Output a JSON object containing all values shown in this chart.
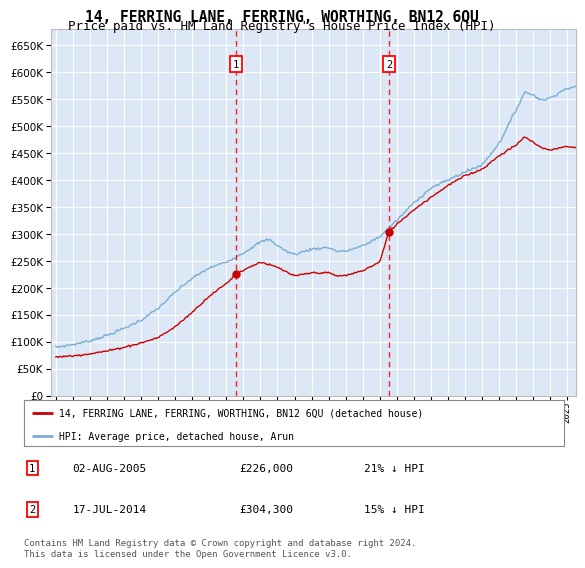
{
  "title": "14, FERRING LANE, FERRING, WORTHING, BN12 6QU",
  "subtitle": "Price paid vs. HM Land Registry's House Price Index (HPI)",
  "ylim": [
    0,
    680000
  ],
  "yticks": [
    0,
    50000,
    100000,
    150000,
    200000,
    250000,
    300000,
    350000,
    400000,
    450000,
    500000,
    550000,
    600000,
    650000
  ],
  "xlim_start": 1994.7,
  "xlim_end": 2025.5,
  "background_color": "#dce8f5",
  "plot_bg": "#dce8f5",
  "grid_color": "#ffffff",
  "hpi_color": "#7aadd4",
  "price_color": "#cc0000",
  "sale1_date": 2005.583,
  "sale1_price": 226000,
  "sale1_label": "1",
  "sale2_date": 2014.542,
  "sale2_price": 304300,
  "sale2_label": "2",
  "legend_line1": "14, FERRING LANE, FERRING, WORTHING, BN12 6QU (detached house)",
  "legend_line2": "HPI: Average price, detached house, Arun",
  "footer": "Contains HM Land Registry data © Crown copyright and database right 2024.\nThis data is licensed under the Open Government Licence v3.0.",
  "title_fontsize": 10.5,
  "subtitle_fontsize": 9
}
